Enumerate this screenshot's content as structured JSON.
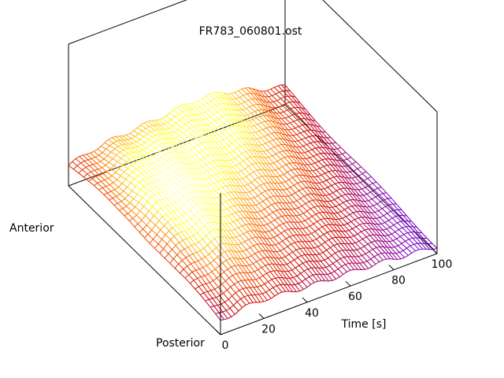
{
  "chart_data": {
    "type": "surface",
    "title": "FR783_060801.ost",
    "xlabel": "Time [s]",
    "y_start_label": "Anterior",
    "y_end_label": "Posterior",
    "xlim": [
      0,
      100
    ],
    "x_ticks": [
      0,
      20,
      40,
      60,
      80,
      100
    ],
    "grid": false,
    "legend": "none",
    "colormap": [
      "#000000",
      "#7a00cc",
      "#cc0000",
      "#ff6600",
      "#ffff33",
      "#ffffcc"
    ],
    "surface": {
      "x": [
        0,
        10,
        20,
        30,
        40,
        50,
        60,
        70,
        80,
        90,
        100
      ],
      "rows": [
        {
          "position": "Anterior",
          "values": [
            0.45,
            0.58,
            0.66,
            0.7,
            0.74,
            0.8,
            0.85,
            0.8,
            0.68,
            0.52,
            0.4
          ]
        },
        {
          "position": "",
          "values": [
            0.52,
            0.72,
            0.88,
            0.9,
            0.88,
            0.86,
            0.84,
            0.76,
            0.62,
            0.46,
            0.34
          ]
        },
        {
          "position": "",
          "values": [
            0.56,
            0.84,
            1.0,
            0.94,
            0.82,
            0.76,
            0.72,
            0.64,
            0.52,
            0.38,
            0.28
          ]
        },
        {
          "position": "",
          "values": [
            0.52,
            0.78,
            0.9,
            0.8,
            0.66,
            0.6,
            0.56,
            0.5,
            0.4,
            0.3,
            0.22
          ]
        },
        {
          "position": "",
          "values": [
            0.44,
            0.6,
            0.66,
            0.58,
            0.5,
            0.46,
            0.44,
            0.4,
            0.32,
            0.24,
            0.18
          ]
        },
        {
          "position": "Posterior",
          "values": [
            0.3,
            0.4,
            0.42,
            0.38,
            0.34,
            0.32,
            0.3,
            0.28,
            0.24,
            0.2,
            0.16
          ]
        }
      ]
    }
  }
}
